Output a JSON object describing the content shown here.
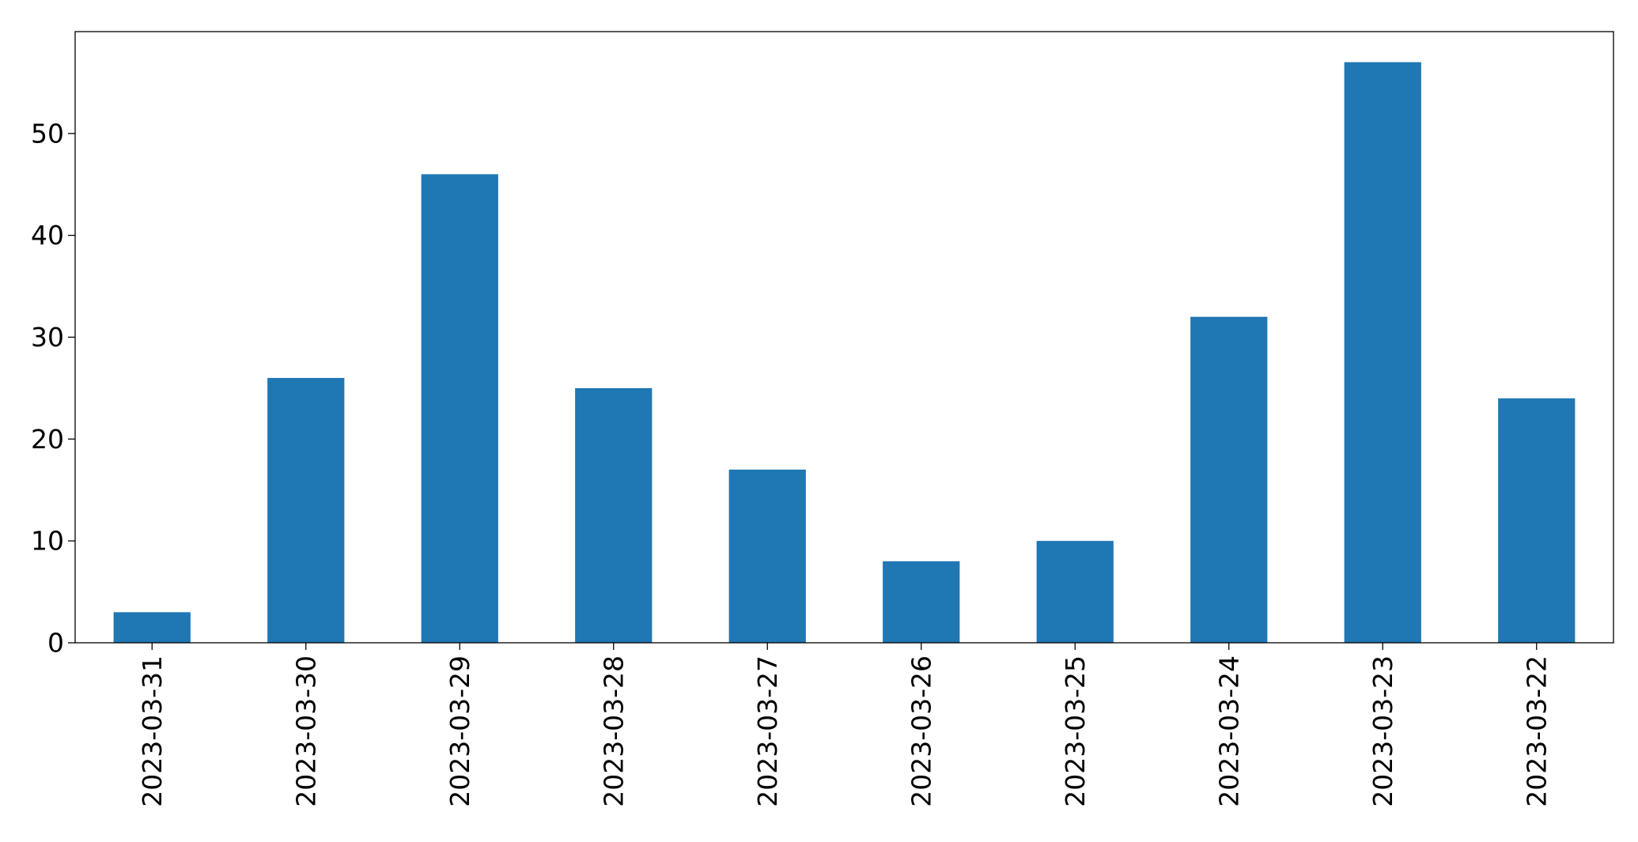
{
  "chart_data": {
    "type": "bar",
    "title": "",
    "xlabel": "",
    "ylabel": "",
    "categories": [
      "2023-03-31",
      "2023-03-30",
      "2023-03-29",
      "2023-03-28",
      "2023-03-27",
      "2023-03-26",
      "2023-03-25",
      "2023-03-24",
      "2023-03-23",
      "2023-03-22"
    ],
    "values": [
      3,
      26,
      46,
      25,
      17,
      8,
      10,
      32,
      57,
      24
    ],
    "ylim": [
      0,
      60
    ],
    "y_ticks": [
      0,
      10,
      20,
      30,
      40,
      50
    ],
    "y_tick_labels": [
      "0",
      "10",
      "20",
      "30",
      "40",
      "50"
    ],
    "grid": false,
    "legend": "none",
    "colors": {
      "bar": "#1f77b4",
      "axes": "#000000",
      "background": "#ffffff"
    }
  }
}
